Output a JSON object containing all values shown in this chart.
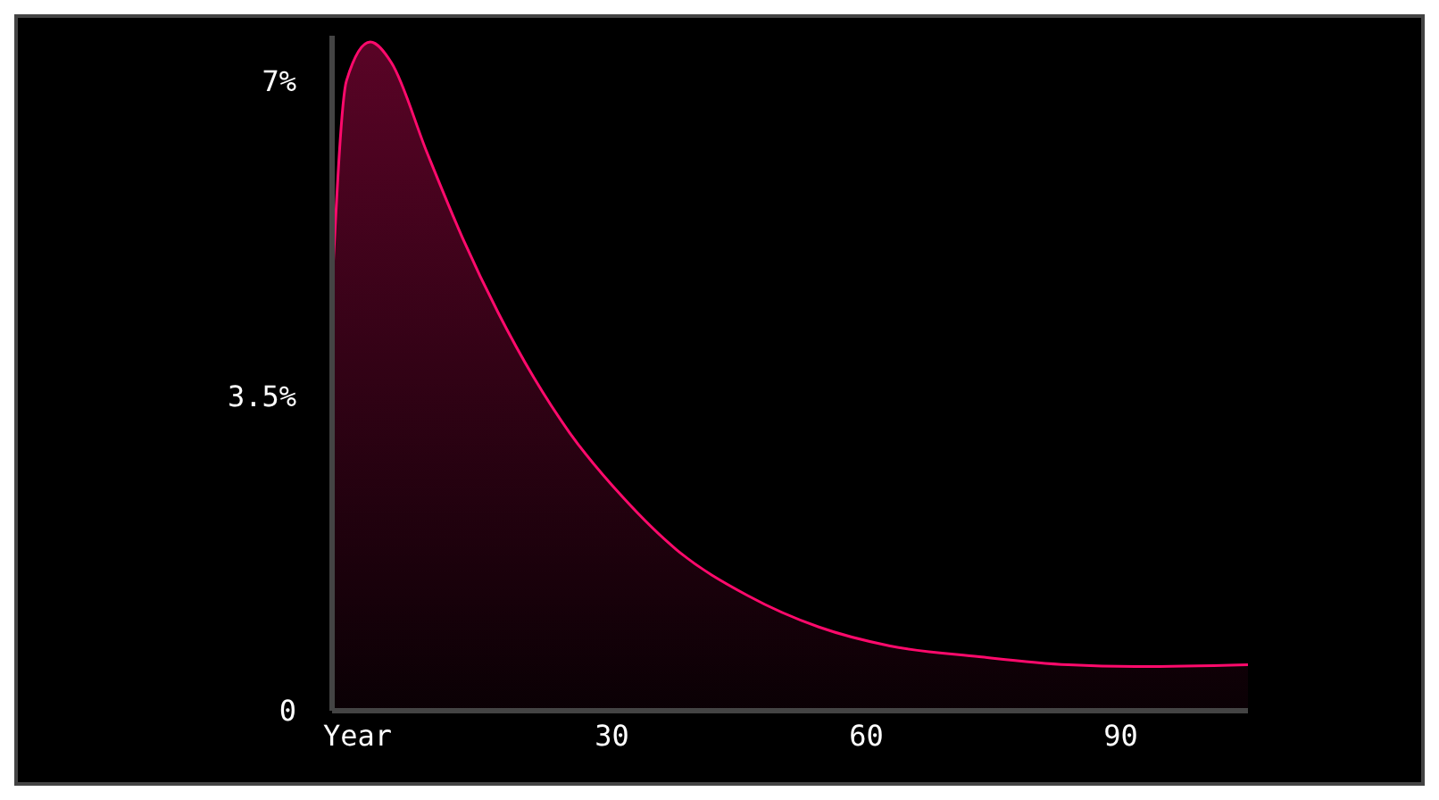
{
  "chart_data": {
    "type": "area",
    "x": [
      -3,
      -1.3,
      1.5,
      4,
      8.2,
      12.4,
      16.6,
      20.8,
      25,
      31.3,
      37.6,
      46,
      54.4,
      62.8,
      73.3,
      83.8,
      92.2,
      105
    ],
    "series": [
      {
        "color": "#ff0a6c",
        "values": [
          4.7,
          7.0,
          7.43,
          7.2,
          6.2,
          5.25,
          4.42,
          3.7,
          3.09,
          2.37,
          1.79,
          1.28,
          0.93,
          0.72,
          0.6,
          0.51,
          0.49,
          0.51
        ]
      }
    ],
    "xlim": [
      -3,
      105
    ],
    "xticks": [
      {
        "value": 0,
        "label": "Year"
      },
      30,
      60,
      90
    ],
    "ylim": [
      0,
      7.5
    ],
    "yticks": [
      0,
      {
        "value": 3.5,
        "label": "3.5%"
      },
      {
        "value": 7,
        "label": "7%"
      }
    ]
  }
}
